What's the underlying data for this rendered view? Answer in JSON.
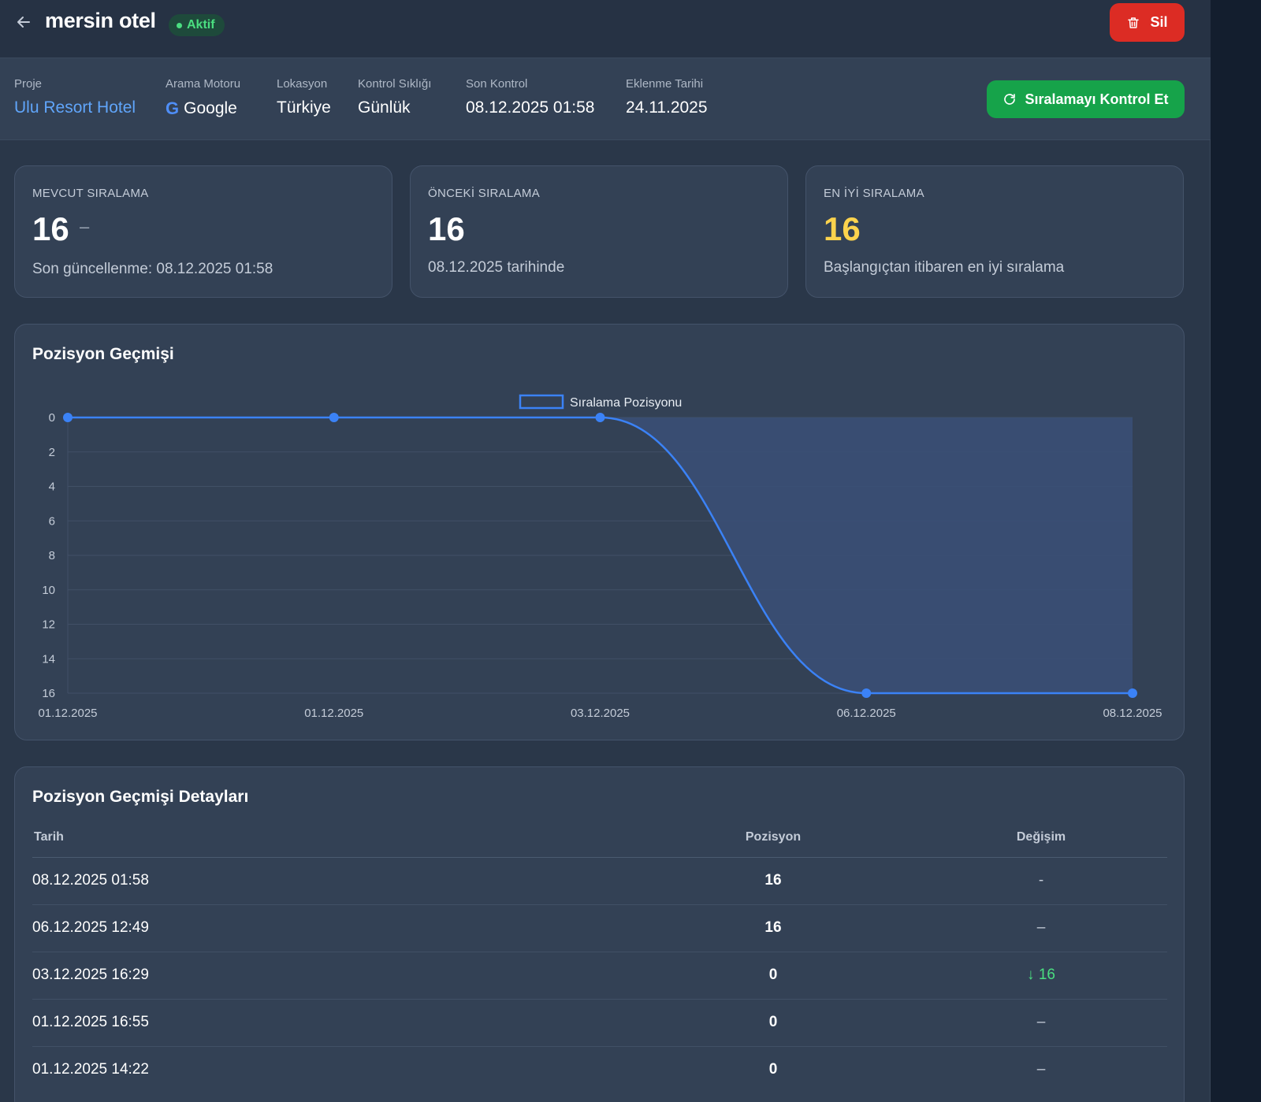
{
  "header": {
    "title": "mersin otel",
    "status": "Aktif",
    "delete_label": "Sil"
  },
  "info": {
    "project_label": "Proje",
    "project_value": "Ulu Resort Hotel",
    "engine_label": "Arama Motoru",
    "engine_value": "Google",
    "location_label": "Lokasyon",
    "location_value": "Türkiye",
    "frequency_label": "Kontrol Sıklığı",
    "frequency_value": "Günlük",
    "last_check_label": "Son Kontrol",
    "last_check_value": "08.12.2025 01:58",
    "added_label": "Eklenme Tarihi",
    "added_value": "24.11.2025",
    "check_button_label": "Sıralamayı Kontrol Et"
  },
  "stats": {
    "current": {
      "label": "MEVCUT SIRALAMA",
      "value": "16",
      "change": "–",
      "sub": "Son güncellenme: 08.12.2025 01:58"
    },
    "previous": {
      "label": "ÖNCEKİ SIRALAMA",
      "value": "16",
      "sub": "08.12.2025 tarihinde"
    },
    "best": {
      "label": "EN İYİ SIRALAMA",
      "value": "16",
      "sub": "Başlangıçtan itibaren en iyi sıralama"
    }
  },
  "chart_section": {
    "title": "Pozisyon Geçmişi"
  },
  "chart_data": {
    "type": "line",
    "title": "",
    "x": [
      "01.12.2025",
      "01.12.2025",
      "03.12.2025",
      "06.12.2025",
      "08.12.2025"
    ],
    "series": [
      {
        "name": "Sıralama Pozisyonu",
        "values": [
          0,
          0,
          0,
          16,
          16
        ]
      }
    ],
    "yticks": [
      0,
      2,
      4,
      6,
      8,
      10,
      12,
      14,
      16
    ],
    "ylim": [
      0,
      16
    ],
    "y_reversed": true,
    "legend": "top-center",
    "grid": true,
    "colors": {
      "line": "#3b82f6",
      "fill": "#3a4f75"
    }
  },
  "table": {
    "title": "Pozisyon Geçmişi Detayları",
    "columns": [
      "Tarih",
      "Pozisyon",
      "Değişim"
    ],
    "rows": [
      {
        "date": "08.12.2025 01:58",
        "position": "16",
        "change": "-"
      },
      {
        "date": "06.12.2025 12:49",
        "position": "16",
        "change": "–"
      },
      {
        "date": "03.12.2025 16:29",
        "position": "0",
        "change": "16",
        "direction": "down"
      },
      {
        "date": "01.12.2025 16:55",
        "position": "0",
        "change": "–"
      },
      {
        "date": "01.12.2025 14:22",
        "position": "0",
        "change": "–"
      }
    ]
  },
  "colors": {
    "background": "#2a3749",
    "card": "#334155",
    "accent_blue": "#60a5fa",
    "success": "#16a34a",
    "danger": "#dc2c24",
    "best_yellow": "#fcd34d"
  }
}
